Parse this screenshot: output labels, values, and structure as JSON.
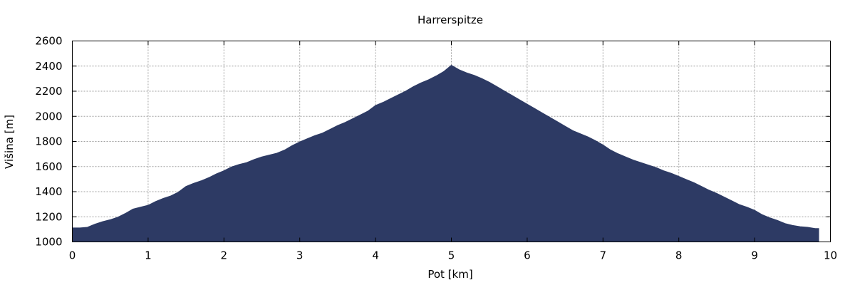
{
  "chart_data": {
    "type": "area",
    "title": "Harrerspitze",
    "xlabel": "Pot [km]",
    "ylabel": "Višina [m]",
    "xlim": [
      0,
      10
    ],
    "ylim": [
      1000,
      2600
    ],
    "x_ticks": [
      0,
      1,
      2,
      3,
      4,
      5,
      6,
      7,
      8,
      9,
      10
    ],
    "y_ticks": [
      1000,
      1200,
      1400,
      1600,
      1800,
      2000,
      2200,
      2400,
      2600
    ],
    "grid": true,
    "fill_color": "#2d3a64",
    "series": [
      {
        "x": [
          0,
          0.1,
          0.2,
          0.3,
          0.4,
          0.5,
          0.6,
          0.7,
          0.8,
          0.9,
          1.0,
          1.1,
          1.2,
          1.3,
          1.4,
          1.5,
          1.6,
          1.7,
          1.8,
          1.9,
          2.0,
          2.1,
          2.2,
          2.3,
          2.4,
          2.5,
          2.6,
          2.7,
          2.8,
          2.9,
          3.0,
          3.1,
          3.2,
          3.3,
          3.4,
          3.5,
          3.6,
          3.7,
          3.8,
          3.9,
          4.0,
          4.1,
          4.2,
          4.3,
          4.4,
          4.5,
          4.6,
          4.7,
          4.8,
          4.9,
          5.0,
          5.1,
          5.2,
          5.3,
          5.4,
          5.5,
          5.6,
          5.7,
          5.8,
          5.9,
          6.0,
          6.1,
          6.2,
          6.3,
          6.4,
          6.5,
          6.6,
          6.7,
          6.8,
          6.9,
          7.0,
          7.1,
          7.2,
          7.3,
          7.4,
          7.5,
          7.6,
          7.7,
          7.8,
          7.9,
          8.0,
          8.1,
          8.2,
          8.3,
          8.4,
          8.5,
          8.6,
          8.7,
          8.8,
          8.9,
          9.0,
          9.1,
          9.2,
          9.3,
          9.4,
          9.5,
          9.6,
          9.7,
          9.8,
          9.85
        ],
        "y": [
          1110,
          1110,
          1115,
          1140,
          1160,
          1175,
          1195,
          1225,
          1260,
          1275,
          1290,
          1320,
          1345,
          1365,
          1395,
          1440,
          1465,
          1485,
          1510,
          1540,
          1565,
          1595,
          1615,
          1630,
          1655,
          1675,
          1690,
          1705,
          1730,
          1765,
          1795,
          1820,
          1845,
          1865,
          1895,
          1925,
          1950,
          1980,
          2010,
          2040,
          2085,
          2110,
          2140,
          2170,
          2200,
          2235,
          2265,
          2290,
          2320,
          2355,
          2405,
          2370,
          2345,
          2325,
          2300,
          2270,
          2235,
          2200,
          2165,
          2130,
          2095,
          2060,
          2025,
          1990,
          1955,
          1920,
          1885,
          1860,
          1835,
          1805,
          1770,
          1730,
          1700,
          1675,
          1650,
          1630,
          1610,
          1590,
          1565,
          1545,
          1520,
          1495,
          1470,
          1440,
          1410,
          1385,
          1355,
          1325,
          1295,
          1275,
          1250,
          1215,
          1190,
          1170,
          1145,
          1130,
          1120,
          1115,
          1105,
          1105
        ]
      }
    ]
  }
}
